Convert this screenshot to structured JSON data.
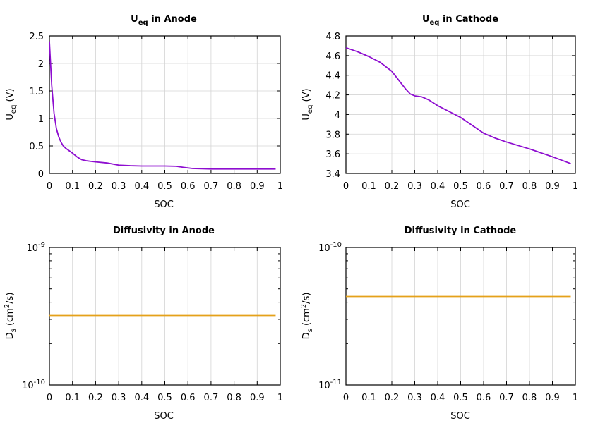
{
  "colors": {
    "purple": "#8e0ed0",
    "orange": "#e5a11a"
  },
  "chart_data": [
    {
      "type": "line",
      "title_main": "U",
      "title_sub": "eq",
      "title_rest": " in Anode",
      "xlabel": "SOC",
      "ylabel_main": "U",
      "ylabel_sub": "eq",
      "ylabel_rest": " (V)",
      "xlim": [
        0,
        1
      ],
      "ylim": [
        0,
        2.5
      ],
      "xticks": [
        "0",
        "0.1",
        "0.2",
        "0.3",
        "0.4",
        "0.5",
        "0.6",
        "0.7",
        "0.8",
        "0.9",
        "1"
      ],
      "yticks": [
        "0",
        "0.5",
        "1",
        "1.5",
        "2",
        "2.5"
      ],
      "grid": true,
      "series": [
        {
          "color": "purple",
          "x": [
            0,
            0.005,
            0.01,
            0.02,
            0.03,
            0.04,
            0.05,
            0.06,
            0.07,
            0.08,
            0.1,
            0.12,
            0.14,
            0.16,
            0.18,
            0.2,
            0.25,
            0.3,
            0.35,
            0.4,
            0.45,
            0.5,
            0.55,
            0.58,
            0.62,
            0.66,
            0.7,
            0.75,
            0.8,
            0.9,
            0.98
          ],
          "y": [
            2.4,
            2.0,
            1.6,
            1.1,
            0.82,
            0.67,
            0.57,
            0.5,
            0.46,
            0.43,
            0.37,
            0.3,
            0.25,
            0.23,
            0.22,
            0.21,
            0.19,
            0.15,
            0.14,
            0.135,
            0.135,
            0.135,
            0.13,
            0.11,
            0.09,
            0.085,
            0.08,
            0.08,
            0.08,
            0.08,
            0.08
          ]
        }
      ]
    },
    {
      "type": "line",
      "title_main": "U",
      "title_sub": "eq",
      "title_rest": " in Cathode",
      "xlabel": "SOC",
      "ylabel_main": "U",
      "ylabel_sub": "eq",
      "ylabel_rest": " (V)",
      "xlim": [
        0,
        1
      ],
      "ylim": [
        3.4,
        4.8
      ],
      "xticks": [
        "0",
        "0.1",
        "0.2",
        "0.3",
        "0.4",
        "0.5",
        "0.6",
        "0.7",
        "0.8",
        "0.9",
        "1"
      ],
      "yticks": [
        "3.4",
        "3.6",
        "3.8",
        "4",
        "4.2",
        "4.4",
        "4.6",
        "4.8"
      ],
      "grid": true,
      "series": [
        {
          "color": "purple",
          "x": [
            0,
            0.05,
            0.1,
            0.15,
            0.2,
            0.23,
            0.26,
            0.28,
            0.3,
            0.33,
            0.36,
            0.4,
            0.45,
            0.5,
            0.55,
            0.6,
            0.65,
            0.7,
            0.8,
            0.9,
            0.98
          ],
          "y": [
            4.68,
            4.64,
            4.59,
            4.53,
            4.44,
            4.35,
            4.26,
            4.21,
            4.19,
            4.18,
            4.15,
            4.09,
            4.03,
            3.97,
            3.89,
            3.81,
            3.76,
            3.72,
            3.65,
            3.57,
            3.5
          ]
        }
      ]
    },
    {
      "type": "line",
      "title": "Diffusivity in Anode",
      "xlabel": "SOC",
      "ylabel_main": "D",
      "ylabel_sub": "s",
      "ylabel_mid": " (cm",
      "ylabel_sup": "2",
      "ylabel_rest": "/s)",
      "yscale": "log",
      "xlim": [
        0,
        1
      ],
      "ylim": [
        1e-10,
        1e-09
      ],
      "xticks": [
        "0",
        "0.1",
        "0.2",
        "0.3",
        "0.4",
        "0.5",
        "0.6",
        "0.7",
        "0.8",
        "0.9",
        "1"
      ],
      "yticks_base": [
        "10",
        "10"
      ],
      "yticks_exp": [
        "-10",
        "-9"
      ],
      "grid": true,
      "series": [
        {
          "color": "orange",
          "x": [
            0,
            0.98
          ],
          "y": [
            3.2e-10,
            3.2e-10
          ]
        }
      ]
    },
    {
      "type": "line",
      "title": "Diffusivity in Cathode",
      "xlabel": "SOC",
      "ylabel_main": "D",
      "ylabel_sub": "s",
      "ylabel_mid": " (cm",
      "ylabel_sup": "2",
      "ylabel_rest": "/s)",
      "yscale": "log",
      "xlim": [
        0,
        1
      ],
      "ylim": [
        1e-11,
        1e-10
      ],
      "xticks": [
        "0",
        "0.1",
        "0.2",
        "0.3",
        "0.4",
        "0.5",
        "0.6",
        "0.7",
        "0.8",
        "0.9",
        "1"
      ],
      "yticks_base": [
        "10",
        "10"
      ],
      "yticks_exp": [
        "-11",
        "-10"
      ],
      "grid": true,
      "series": [
        {
          "color": "orange",
          "x": [
            0,
            0.98
          ],
          "y": [
            4.4e-11,
            4.4e-11
          ]
        }
      ]
    }
  ]
}
